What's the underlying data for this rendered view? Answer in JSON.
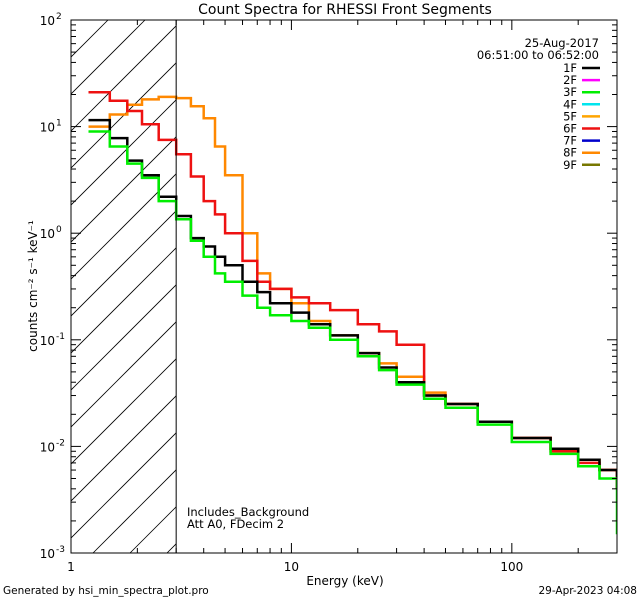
{
  "chart_data": {
    "type": "line",
    "title": "Count Spectra for RHESSI Front Segments",
    "xlabel": "Energy (keV)",
    "ylabel": "counts cm⁻² s⁻¹ keV⁻¹",
    "x_scale": "log",
    "y_scale": "log",
    "xlim": [
      1,
      300
    ],
    "ylim": [
      0.001,
      100
    ],
    "x_ticks": [
      1,
      10,
      100
    ],
    "x_tick_labels": [
      "1",
      "10",
      "100"
    ],
    "y_ticks": [
      0.001,
      0.01,
      0.1,
      1,
      10,
      100
    ],
    "y_tick_labels": [
      {
        "base": "10",
        "exp": "-3"
      },
      {
        "base": "10",
        "exp": "-2"
      },
      {
        "base": "10",
        "exp": "-1"
      },
      {
        "base": "10",
        "exp": "0"
      },
      {
        "base": "10",
        "exp": "1"
      },
      {
        "base": "10",
        "exp": "2"
      }
    ],
    "hatched_region": [
      1,
      3
    ],
    "vertical_line_x": 3,
    "legend_position": "top-right",
    "series": [
      {
        "name": "1F",
        "color": "#000000",
        "points": [
          [
            1.2,
            11.5
          ],
          [
            1.5,
            7.8
          ],
          [
            1.8,
            4.8
          ],
          [
            2.1,
            3.5
          ],
          [
            2.5,
            2.2
          ],
          [
            3.0,
            1.45
          ],
          [
            3.5,
            0.9
          ],
          [
            4.0,
            0.75
          ],
          [
            4.5,
            0.6
          ],
          [
            5.0,
            0.5
          ],
          [
            6.0,
            0.35
          ],
          [
            7.0,
            0.28
          ],
          [
            8.0,
            0.22
          ],
          [
            10.0,
            0.18
          ],
          [
            12.0,
            0.14
          ],
          [
            15.0,
            0.11
          ],
          [
            20.0,
            0.075
          ],
          [
            25.0,
            0.055
          ],
          [
            30.0,
            0.04
          ],
          [
            40.0,
            0.03
          ],
          [
            50.0,
            0.025
          ],
          [
            70.0,
            0.017
          ],
          [
            100.0,
            0.012
          ],
          [
            150.0,
            0.0095
          ],
          [
            200.0,
            0.0075
          ],
          [
            250.0,
            0.006
          ],
          [
            300.0,
            0.004
          ]
        ]
      },
      {
        "name": "2F",
        "color": "#ff00ff",
        "points": []
      },
      {
        "name": "3F",
        "color": "#00ee00",
        "points": [
          [
            1.2,
            9.0
          ],
          [
            1.5,
            6.5
          ],
          [
            1.8,
            4.5
          ],
          [
            2.1,
            3.3
          ],
          [
            2.5,
            2.0
          ],
          [
            3.0,
            1.35
          ],
          [
            3.5,
            0.85
          ],
          [
            4.0,
            0.6
          ],
          [
            4.5,
            0.42
          ],
          [
            5.0,
            0.35
          ],
          [
            6.0,
            0.26
          ],
          [
            7.0,
            0.2
          ],
          [
            8.0,
            0.17
          ],
          [
            10.0,
            0.15
          ],
          [
            12.0,
            0.13
          ],
          [
            15.0,
            0.1
          ],
          [
            20.0,
            0.07
          ],
          [
            25.0,
            0.052
          ],
          [
            30.0,
            0.038
          ],
          [
            40.0,
            0.028
          ],
          [
            50.0,
            0.023
          ],
          [
            70.0,
            0.016
          ],
          [
            100.0,
            0.011
          ],
          [
            150.0,
            0.0085
          ],
          [
            200.0,
            0.0065
          ],
          [
            250.0,
            0.005
          ],
          [
            300.0,
            0.0015
          ]
        ]
      },
      {
        "name": "4F",
        "color": "#00e5ee",
        "points": []
      },
      {
        "name": "5F",
        "color": "#ffa500",
        "points": []
      },
      {
        "name": "6F",
        "color": "#ee1111",
        "points": [
          [
            1.2,
            21.0
          ],
          [
            1.5,
            17.5
          ],
          [
            1.8,
            14.0
          ],
          [
            2.1,
            10.5
          ],
          [
            2.5,
            7.5
          ],
          [
            3.0,
            5.5
          ],
          [
            3.5,
            3.4
          ],
          [
            4.0,
            2.0
          ],
          [
            4.5,
            1.5
          ],
          [
            5.0,
            1.0
          ],
          [
            6.0,
            0.55
          ],
          [
            7.0,
            0.35
          ],
          [
            8.0,
            0.3
          ],
          [
            10.0,
            0.25
          ],
          [
            12.0,
            0.22
          ],
          [
            15.0,
            0.19
          ],
          [
            20.0,
            0.14
          ],
          [
            25.0,
            0.12
          ],
          [
            30.0,
            0.09
          ],
          [
            40.0,
            0.03
          ],
          [
            50.0,
            0.025
          ],
          [
            70.0,
            0.017
          ],
          [
            100.0,
            0.012
          ],
          [
            150.0,
            0.009
          ],
          [
            200.0,
            0.007
          ],
          [
            250.0,
            0.006
          ],
          [
            300.0,
            0.004
          ]
        ]
      },
      {
        "name": "7F",
        "color": "#0000cc",
        "points": []
      },
      {
        "name": "8F",
        "color": "#ff8800",
        "points": [
          [
            1.2,
            10.0
          ],
          [
            1.5,
            13.0
          ],
          [
            1.8,
            16.0
          ],
          [
            2.1,
            18.0
          ],
          [
            2.5,
            19.0
          ],
          [
            3.0,
            18.5
          ],
          [
            3.5,
            15.5
          ],
          [
            4.0,
            12.0
          ],
          [
            4.5,
            6.5
          ],
          [
            5.0,
            3.5
          ],
          [
            6.0,
            1.0
          ],
          [
            7.0,
            0.42
          ],
          [
            8.0,
            0.3
          ],
          [
            10.0,
            0.22
          ],
          [
            12.0,
            0.15
          ],
          [
            15.0,
            0.11
          ],
          [
            20.0,
            0.075
          ],
          [
            25.0,
            0.06
          ],
          [
            30.0,
            0.045
          ],
          [
            40.0,
            0.032
          ],
          [
            50.0,
            0.025
          ],
          [
            70.0,
            0.017
          ],
          [
            100.0,
            0.012
          ],
          [
            150.0,
            0.0095
          ],
          [
            200.0,
            0.0075
          ],
          [
            250.0,
            0.006
          ],
          [
            300.0,
            0.004
          ]
        ]
      },
      {
        "name": "9F",
        "color": "#777700",
        "points": []
      }
    ]
  },
  "header": {
    "date": "25-Aug-2017",
    "time_range": "06:51:00 to 06:52:00"
  },
  "annotations": {
    "line1": "Includes_Background",
    "line2": "Att A0, FDecim 2"
  },
  "footer": {
    "generated": "Generated by hsi_min_spectra_plot.pro",
    "timestamp": "29-Apr-2023 04:08"
  }
}
